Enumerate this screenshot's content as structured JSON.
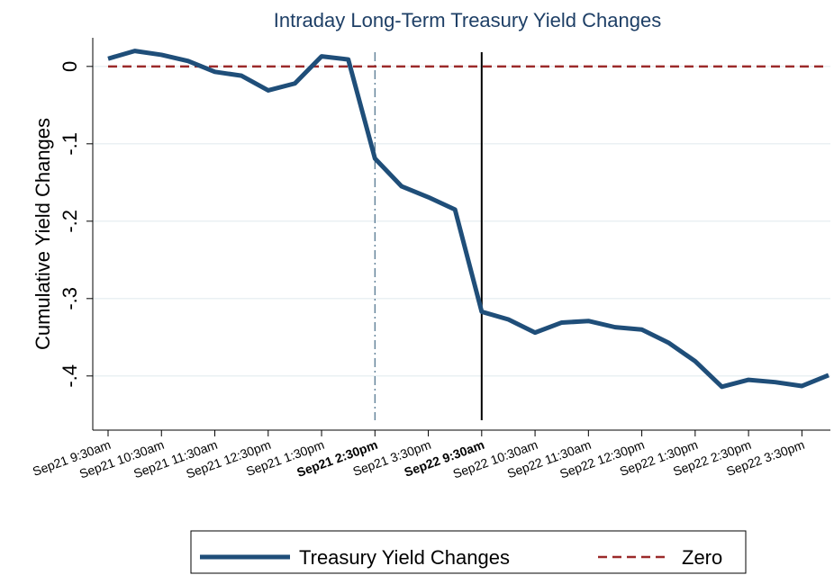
{
  "chart_data": {
    "type": "line",
    "title": "Intraday Long-Term Treasury Yield Changes",
    "y_label": "Cumulative Yield Changes",
    "categories": [
      "Sep21 9:30am",
      null,
      "Sep21 10:30am",
      null,
      "Sep21 11:30am",
      null,
      "Sep21 12:30pm",
      null,
      "Sep21 1:30pm",
      null,
      "Sep21 2:30pm",
      null,
      "Sep21 3:30pm",
      null,
      "Sep22 9:30am",
      null,
      "Sep22 10:30am",
      null,
      "Sep22 11:30am",
      null,
      "Sep22 12:30pm",
      null,
      "Sep22 1:30pm",
      null,
      "Sep22 2:30pm",
      null,
      "Sep22 3:30pm",
      null
    ],
    "bold_categories": [
      10,
      14
    ],
    "series": [
      {
        "name": "Treasury Yield Changes",
        "color": "#1f4e79",
        "style": "solid",
        "values": [
          0.01,
          0.02,
          0.015,
          0.007,
          -0.007,
          -0.012,
          -0.031,
          -0.022,
          0.013,
          0.009,
          -0.119,
          -0.155,
          -0.169,
          -0.185,
          -0.317,
          -0.327,
          -0.344,
          -0.331,
          -0.329,
          -0.337,
          -0.34,
          -0.357,
          -0.381,
          -0.414,
          -0.405,
          -0.408,
          -0.413,
          -0.399
        ]
      },
      {
        "name": "Zero",
        "color": "#9b2a2a",
        "style": "dashed",
        "values": [
          0,
          0,
          0,
          0,
          0,
          0,
          0,
          0,
          0,
          0,
          0,
          0,
          0,
          0,
          0,
          0,
          0,
          0,
          0,
          0,
          0,
          0,
          0,
          0,
          0,
          0,
          0,
          0
        ]
      }
    ],
    "vlines": [
      {
        "index": 10,
        "style": "dash-dot",
        "color": "#4a6f8a"
      },
      {
        "index": 14,
        "style": "solid",
        "color": "#000000"
      }
    ],
    "ylim": [
      -0.47,
      0.037
    ],
    "yticks": [
      0,
      {
        "value": -0.1,
        "label": "-.1"
      },
      {
        "value": -0.2,
        "label": "-.2"
      },
      {
        "value": -0.3,
        "label": "-.3"
      },
      {
        "value": -0.4,
        "label": "-.4"
      }
    ],
    "grid": true
  }
}
